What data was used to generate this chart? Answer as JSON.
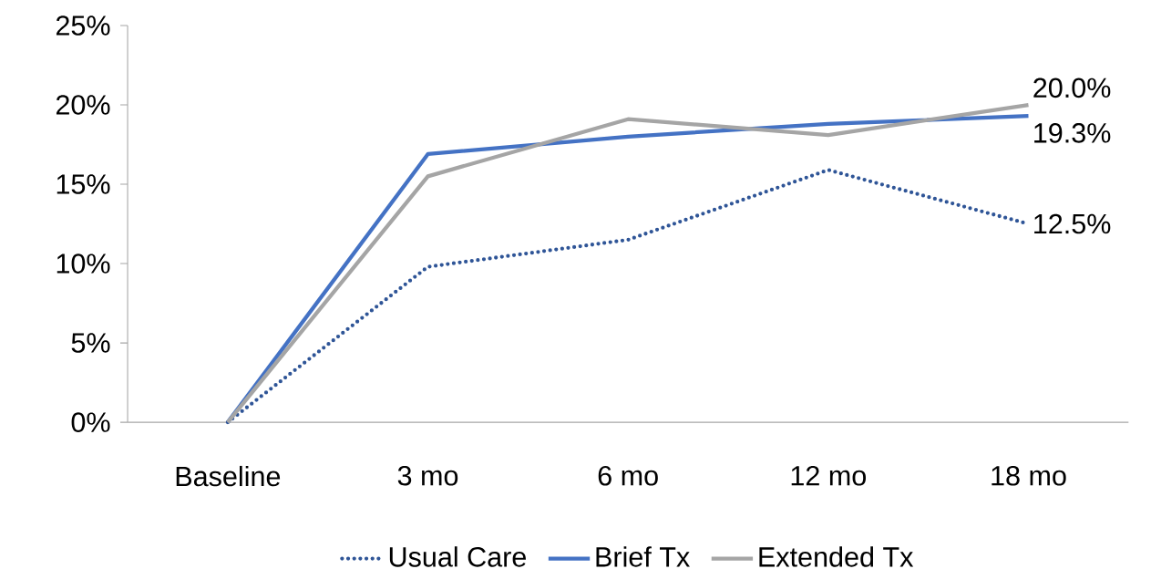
{
  "chart_data": {
    "type": "line",
    "categories": [
      "Baseline",
      "3 mo",
      "6 mo",
      "12 mo",
      "18 mo"
    ],
    "series": [
      {
        "name": "Usual Care",
        "color": "#2f5597",
        "line_style": "dotted",
        "values": [
          0,
          9.8,
          11.5,
          15.9,
          12.5
        ],
        "value_labels": [
          null,
          null,
          null,
          null,
          "12.5%"
        ]
      },
      {
        "name": "Brief Tx",
        "color": "#4472c4",
        "values": [
          0,
          16.9,
          18.0,
          18.8,
          19.3
        ],
        "value_labels": [
          null,
          null,
          null,
          null,
          "19.3%"
        ]
      },
      {
        "name": "Extended Tx",
        "color": "#a5a5a5",
        "values": [
          0,
          15.5,
          19.1,
          18.1,
          20.0
        ],
        "value_labels": [
          null,
          null,
          null,
          null,
          "20.0%"
        ]
      }
    ],
    "ylim": [
      0,
      25
    ],
    "yticks": [
      {
        "value": 0,
        "label": "0%"
      },
      {
        "value": 5,
        "label": "5%"
      },
      {
        "value": 10,
        "label": "10%"
      },
      {
        "value": 15,
        "label": "15%"
      },
      {
        "value": 20,
        "label": "20%"
      },
      {
        "value": 25,
        "label": "25%"
      }
    ],
    "grid": false,
    "legend": "bottom",
    "marker": "none"
  }
}
